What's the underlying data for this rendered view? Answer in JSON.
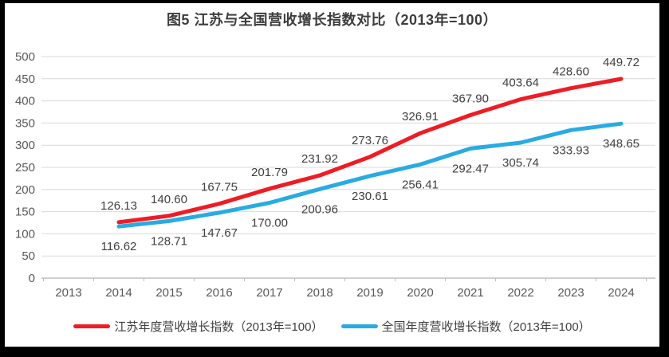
{
  "title": "图5  江苏与全国营收增长指数对比（2013年=100）",
  "chart_data": {
    "type": "line",
    "title": "图5  江苏与全国营收增长指数对比（2013年=100）",
    "categories": [
      "2013",
      "2014",
      "2015",
      "2016",
      "2017",
      "2018",
      "2019",
      "2020",
      "2021",
      "2022",
      "2023",
      "2024"
    ],
    "series": [
      {
        "name": "江苏年度营收增长指数（2013年=100）",
        "color": "#ee1c25",
        "label_position": "above",
        "values": [
          null,
          126.13,
          140.6,
          167.75,
          201.79,
          231.92,
          273.76,
          326.91,
          367.9,
          403.64,
          428.6,
          449.72
        ]
      },
      {
        "name": "全国年度营收增长指数（2013年=100）",
        "color": "#29abe2",
        "label_position": "below",
        "values": [
          null,
          116.62,
          128.71,
          147.67,
          170.0,
          200.96,
          230.61,
          256.41,
          292.47,
          305.74,
          333.93,
          348.65
        ]
      }
    ],
    "ylim": [
      0,
      500
    ],
    "ytick_step": 50,
    "grid": true,
    "legend_position": "bottom",
    "data_label_decimals": 2,
    "colors": {
      "gridline": "#d9d9d9",
      "axis_line": "#bfbfbf",
      "tick_label": "#595959",
      "data_label": "#404040",
      "frame": "#000000"
    }
  }
}
